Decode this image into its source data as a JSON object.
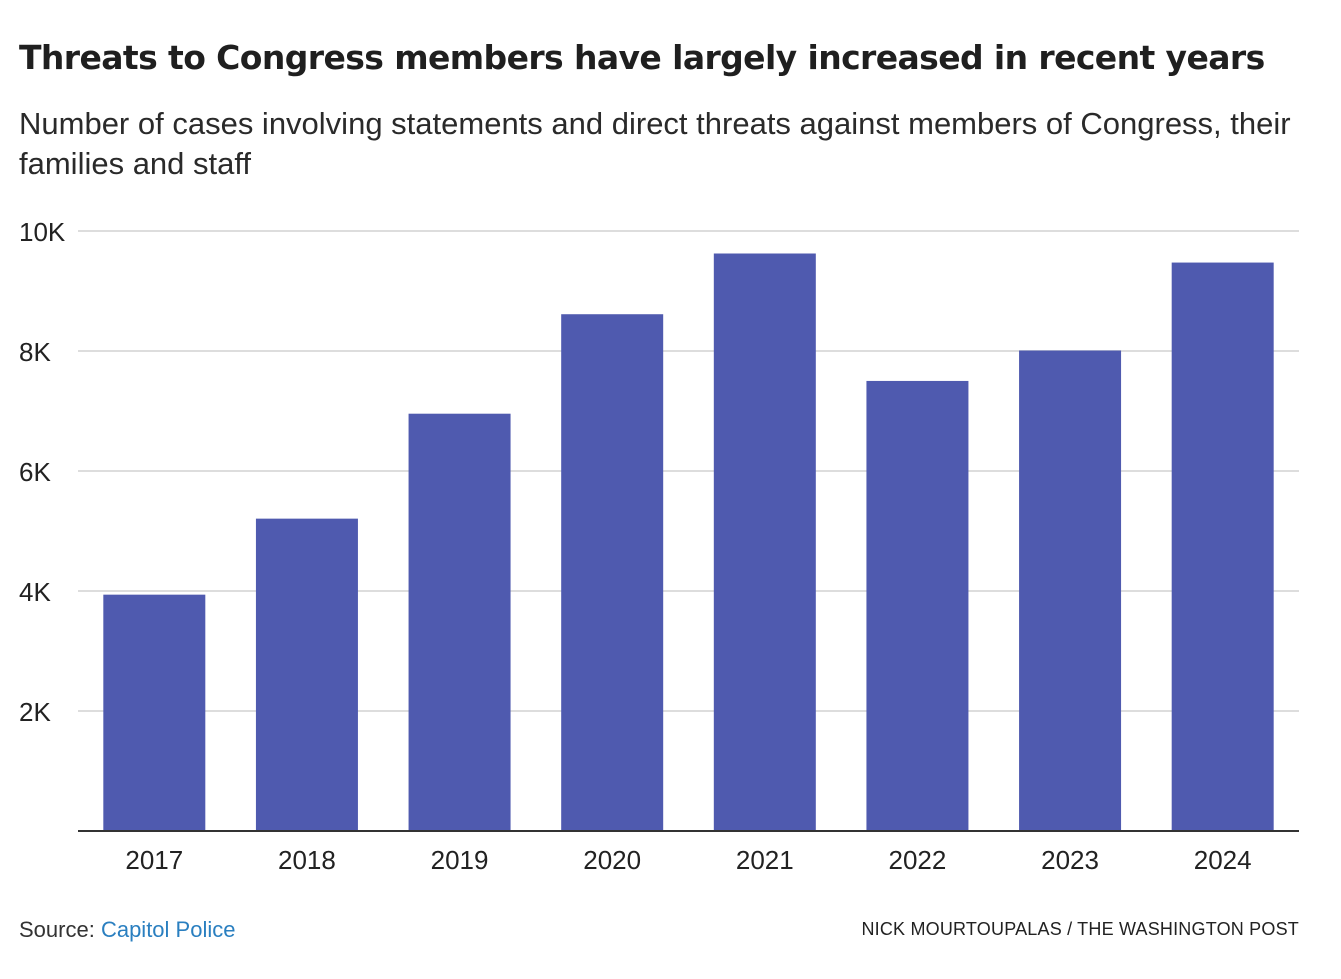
{
  "title": "Threats to Congress members have largely increased in recent years",
  "subtitle": "Number of cases involving statements and direct threats against members of Congress, their families and staff",
  "source_label": "Source:",
  "source_name": "Capitol Police",
  "credit": "NICK MOURTOUPALAS / THE WASHINGTON POST",
  "colors": {
    "bar": "#4f5aaf",
    "grid": "#dddddd",
    "baseline": "#333333",
    "text": "#222222",
    "source_link": "#2a7fc0"
  },
  "chart_data": {
    "type": "bar",
    "categories": [
      "2017",
      "2018",
      "2019",
      "2020",
      "2021",
      "2022",
      "2023",
      "2024"
    ],
    "values": [
      3939,
      5206,
      6955,
      8613,
      9625,
      7501,
      8008,
      9474
    ],
    "ylim": [
      0,
      10000
    ],
    "yticks": [
      2000,
      4000,
      6000,
      8000,
      10000
    ],
    "ytick_labels": [
      "2K",
      "4K",
      "6K",
      "8K",
      "10K"
    ],
    "xlabel": "",
    "ylabel": "",
    "grid": true,
    "legend": "none"
  }
}
